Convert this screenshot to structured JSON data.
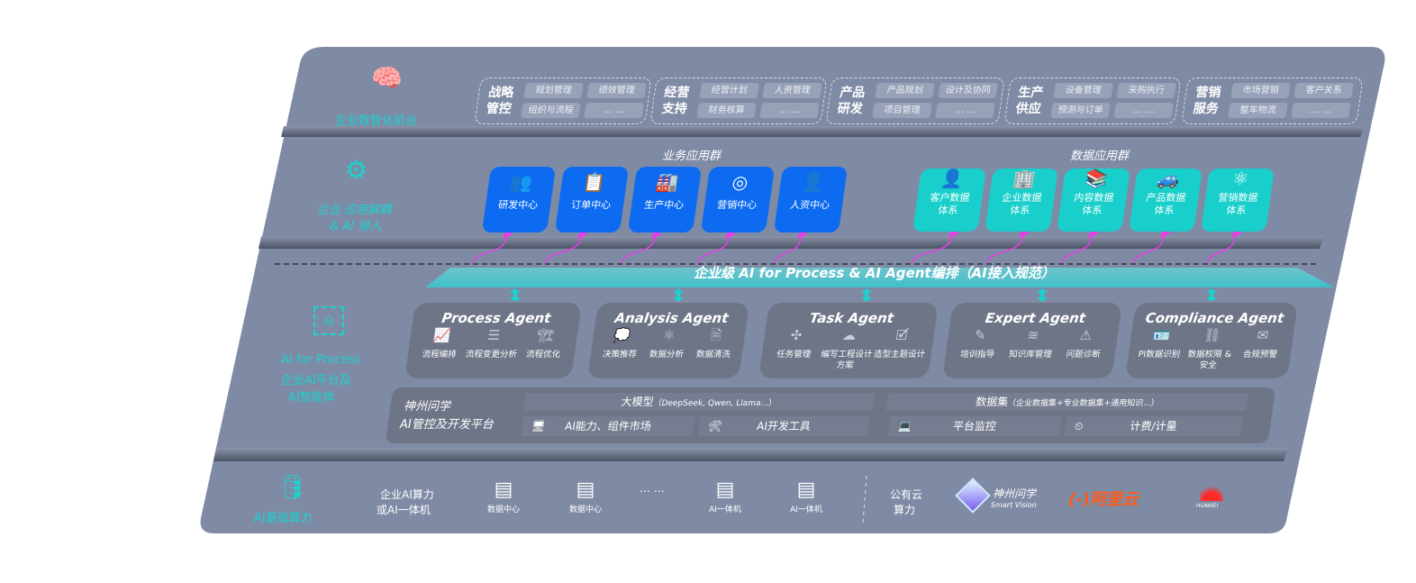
{
  "colors": {
    "panel": "#7f8ba5",
    "teal": "#19d3d0",
    "blue": "#0c6bf0",
    "card": "#6e7587",
    "magenta": "#e63ee6"
  },
  "layers": {
    "front": "企业数智化前台",
    "apps": [
      "企业 应用解耦",
      "& AI 侵入"
    ],
    "ai": [
      "AI for Process",
      "企业AI平台及",
      "AI智能体"
    ],
    "infra": "AI基础算力"
  },
  "front_groups": [
    {
      "title": [
        "战略",
        "管控"
      ],
      "items": [
        "规划管理",
        "绩效管理",
        "组织与流程",
        "… …"
      ]
    },
    {
      "title": [
        "经营",
        "支持"
      ],
      "items": [
        "经营计划",
        "人资管理",
        "财务核算",
        "… …"
      ]
    },
    {
      "title": [
        "产品",
        "研发"
      ],
      "items": [
        "产品规划",
        "设计及协同",
        "项目管理",
        "… …"
      ]
    },
    {
      "title": [
        "生产",
        "供应"
      ],
      "items": [
        "设备管理",
        "采购执行",
        "预测与订单",
        "… …"
      ]
    },
    {
      "title": [
        "营销",
        "服务"
      ],
      "items": [
        "市场营销",
        "客户关系",
        "整车物流",
        "… …"
      ]
    }
  ],
  "business_apps": {
    "title": "业务应用群",
    "items": [
      {
        "label": "研发中心",
        "icon": "users-icon"
      },
      {
        "label": "订单中心",
        "icon": "clipboard-icon"
      },
      {
        "label": "生产中心",
        "icon": "factory-icon"
      },
      {
        "label": "营销中心",
        "icon": "target-icon"
      },
      {
        "label": "人资中心",
        "icon": "person-icon"
      }
    ]
  },
  "data_apps": {
    "title": "数据应用群",
    "items": [
      {
        "label": [
          "客户数据",
          "体系"
        ],
        "icon": "user-icon"
      },
      {
        "label": [
          "企业数据",
          "体系"
        ],
        "icon": "building-icon"
      },
      {
        "label": [
          "内容数据",
          "体系"
        ],
        "icon": "books-icon"
      },
      {
        "label": [
          "产品数据",
          "体系"
        ],
        "icon": "car-icon"
      },
      {
        "label": [
          "营销数据",
          "体系"
        ],
        "icon": "atom-icon"
      }
    ]
  },
  "orchestration": "企业级 AI for Process & AI Agent编排（AI接入规范）",
  "agents": [
    {
      "name": "Process Agent",
      "features": [
        "流程编排",
        "流程变更分析",
        "流程优化"
      ]
    },
    {
      "name": "Analysis Agent",
      "features": [
        "决策推荐",
        "数据分析",
        "数据清洗"
      ]
    },
    {
      "name": "Task Agent",
      "features": [
        "任务管理",
        "编写工程设计方案",
        "造型主题设计"
      ]
    },
    {
      "name": "Expert Agent",
      "features": [
        "培训指导",
        "知识库管理",
        "问题诊断"
      ]
    },
    {
      "name": "Compliance Agent",
      "features": [
        "PI数据识别",
        "数据权限 & 安全",
        "合规预警"
      ]
    }
  ],
  "platform": {
    "title": [
      "神州问学",
      "AI管控及开发平台"
    ],
    "model": "大模型",
    "model_note": "（DeepSeek, Qwen, Llama...）",
    "dataset": "数据集",
    "dataset_note": "（企业数据集+专业数据集+通用知识...）",
    "tools": [
      "AI能力、组件市场",
      "AI开发工具",
      "平台监控",
      "计费/计量"
    ]
  },
  "infra": {
    "enterprise": [
      "企业AI算力",
      "或AI一体机"
    ],
    "servers": [
      "数据中心",
      "数据中心",
      "AI一体机",
      "AI一体机"
    ],
    "ellipsis": "… …",
    "public": [
      "公有云",
      "算力"
    ],
    "vendors": {
      "smartvision": "神州问学",
      "smartvision_en": "Smart Vision",
      "aliyun": "阿里云",
      "huawei": "HUAWEI"
    }
  }
}
